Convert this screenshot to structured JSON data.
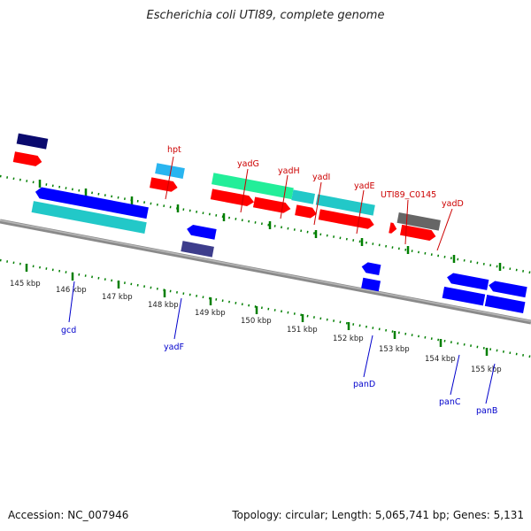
{
  "title": "Escherichia coli UTI89, complete genome",
  "accession": "Accession: NC_007946",
  "summary": "Topology: circular; Length: 5,065,741 bp; Genes: 5,131",
  "colors": {
    "scale_tick": "#007f00",
    "backbone": "#888888",
    "forward_label": "#cc0000",
    "reverse_label": "#0000cc",
    "cds_red": "#ff0000",
    "cds_blue": "#0000ff",
    "cds_cyan": "#22c8c8",
    "cds_skyblue": "#29b5f0",
    "cds_navy": "#0a0a6e",
    "cds_slate": "#3d3d8c",
    "cds_green": "#22ee99",
    "cds_gray": "#666666"
  },
  "scale_labels": [
    "145 kbp",
    "146 kbp",
    "147 kbp",
    "148 kbp",
    "149 kbp",
    "150 kbp",
    "151 kbp",
    "152 kbp",
    "153 kbp",
    "154 kbp",
    "155 kbp"
  ],
  "forward_gene_labels": [
    "hpt",
    "yadG",
    "yadH",
    "yadI",
    "yadE",
    "UTI89_C0145",
    "yadD"
  ],
  "reverse_gene_labels": [
    "gcd",
    "yadF",
    "panD",
    "panC",
    "panB"
  ]
}
